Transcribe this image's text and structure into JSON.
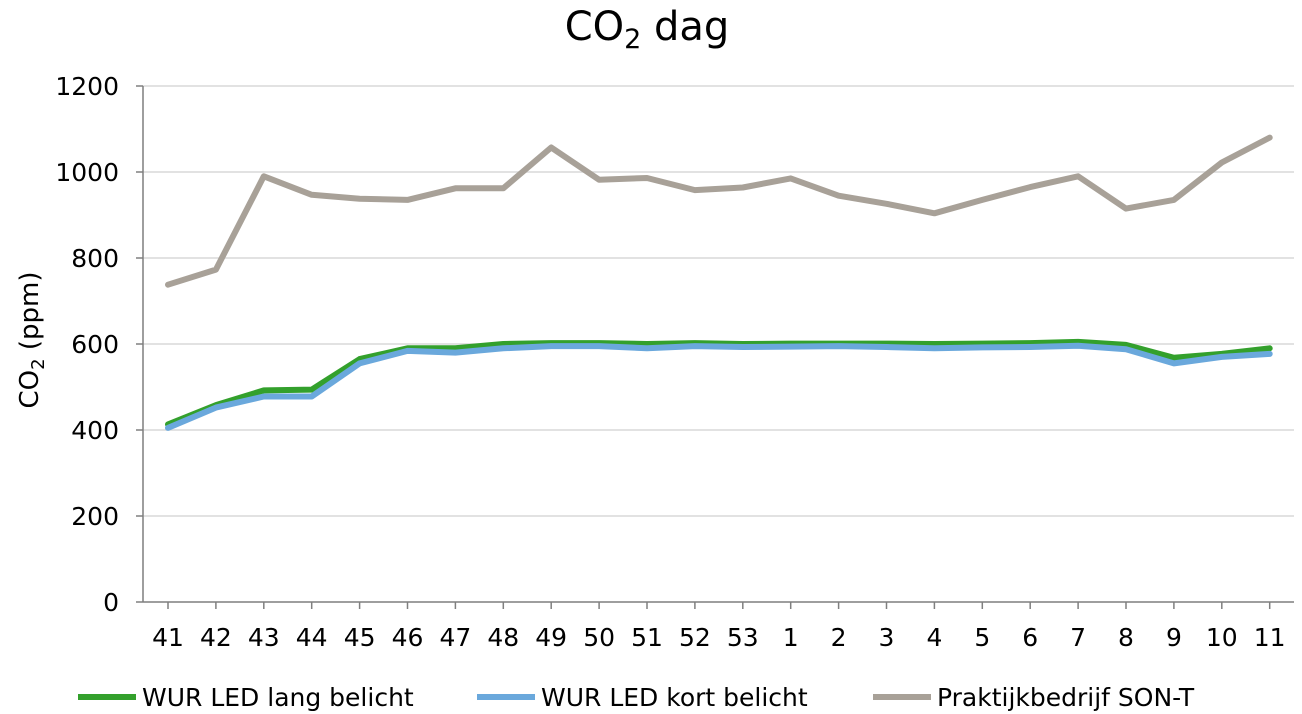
{
  "chart_data": {
    "type": "line",
    "title": "CO",
    "title_subscript": "2",
    "title_suffix": " dag",
    "ylabel": "CO",
    "ylabel_subscript": "2",
    "ylabel_suffix": " (ppm)",
    "xlabel": "",
    "ylim": [
      0,
      1200
    ],
    "yticks": [
      0,
      200,
      400,
      600,
      800,
      1000,
      1200
    ],
    "grid": true,
    "legend_position": "bottom",
    "categories": [
      "41",
      "42",
      "43",
      "44",
      "45",
      "46",
      "47",
      "48",
      "49",
      "50",
      "51",
      "52",
      "53",
      "1",
      "2",
      "3",
      "4",
      "5",
      "6",
      "7",
      "8",
      "9",
      "10",
      "11"
    ],
    "series": [
      {
        "name": "WUR LED lang belicht",
        "color": "#33a02c",
        "values": [
          413,
          458,
          492,
          494,
          565,
          590,
          590,
          600,
          602,
          602,
          600,
          602,
          600,
          601,
          601,
          601,
          600,
          601,
          602,
          605,
          598,
          568,
          577,
          590
        ]
      },
      {
        "name": "WUR LED kort belicht",
        "color": "#6aa8dc",
        "values": [
          405,
          452,
          478,
          478,
          555,
          584,
          580,
          590,
          595,
          595,
          590,
          595,
          593,
          594,
          595,
          593,
          590,
          592,
          593,
          596,
          588,
          555,
          570,
          577
        ]
      },
      {
        "name": "Praktijkbedrijf SON-T",
        "color": "#a8a198",
        "values": [
          738,
          773,
          990,
          947,
          938,
          935,
          962,
          962,
          1057,
          982,
          986,
          958,
          964,
          985,
          945,
          926,
          904,
          935,
          965,
          990,
          915,
          935,
          1022,
          1080
        ]
      }
    ]
  }
}
